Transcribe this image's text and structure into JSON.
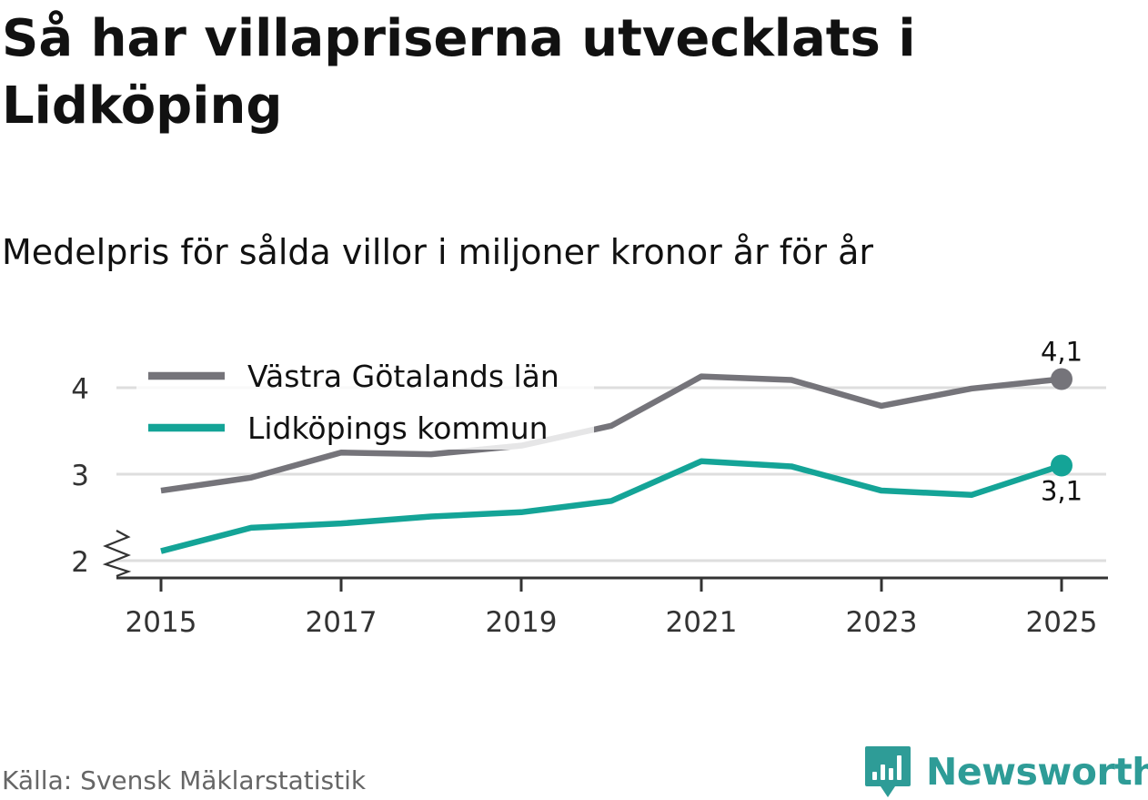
{
  "title": "Så har villapriserna utvecklats i Lidköping",
  "subtitle": "Medelpris för sålda villor i miljoner kronor år för år",
  "source": "Källa: Svensk Mäklarstatistik",
  "brand": {
    "name": "Newsworthy",
    "logo_icon": "newsworthy-logo-icon"
  },
  "colors": {
    "series_lan": "#75747a",
    "series_kommun": "#14a497",
    "grid": "#dedede",
    "axis": "#333333",
    "text": "#111111",
    "muted": "#666666",
    "brand": "#2e9c97"
  },
  "chart_data": {
    "type": "line",
    "title": "Så har villapriserna utvecklats i Lidköping",
    "subtitle": "Medelpris för sålda villor i miljoner kronor år för år",
    "xlabel": "",
    "ylabel": "",
    "x": [
      2015,
      2016,
      2017,
      2018,
      2019,
      2020,
      2021,
      2022,
      2023,
      2024,
      2025
    ],
    "xticks": [
      "2015",
      "2017",
      "2019",
      "2021",
      "2023",
      "2025"
    ],
    "yticks": [
      "2",
      "3",
      "4"
    ],
    "ylim": [
      1.8,
      4.4
    ],
    "y_axis_break": true,
    "grid": true,
    "legend_position": "top-left",
    "series": [
      {
        "name": "Västra Götalands län",
        "color": "#75747a",
        "values": [
          2.81,
          2.96,
          3.25,
          3.23,
          3.33,
          3.56,
          4.13,
          4.09,
          3.79,
          3.99,
          4.1
        ],
        "end_label": "4,1"
      },
      {
        "name": "Lidköpings kommun",
        "color": "#14a497",
        "values": [
          2.11,
          2.38,
          2.43,
          2.51,
          2.56,
          2.69,
          3.15,
          3.09,
          2.81,
          2.76,
          3.1
        ],
        "end_label": "3,1"
      }
    ]
  }
}
